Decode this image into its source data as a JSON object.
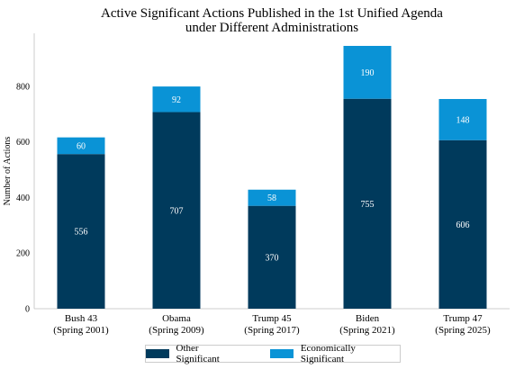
{
  "chart_data": {
    "type": "bar",
    "stacked": true,
    "title_line1": "Active Significant Actions Published in the 1st Unified Agenda",
    "title_line2": "under Different Administrations",
    "xlabel": "",
    "ylabel": "Number of Actions",
    "ylim": [
      0,
      1000
    ],
    "yticks": [
      0,
      200,
      400,
      600,
      800
    ],
    "categories": [
      {
        "line1": "Bush 43",
        "line2": "(Spring 2001)"
      },
      {
        "line1": "Obama",
        "line2": "(Spring 2009)"
      },
      {
        "line1": "Trump 45",
        "line2": "(Spring 2017)"
      },
      {
        "line1": "Biden",
        "line2": "(Spring 2021)"
      },
      {
        "line1": "Trump 47",
        "line2": "(Spring 2025)"
      }
    ],
    "series": [
      {
        "name": "Other Significant",
        "color": "#003a5c",
        "values": [
          556,
          707,
          370,
          755,
          606
        ]
      },
      {
        "name": "Economically Significant",
        "color": "#0a93d6",
        "values": [
          60,
          92,
          58,
          190,
          148
        ]
      }
    ],
    "grid": false,
    "legend_position": "bottom"
  }
}
